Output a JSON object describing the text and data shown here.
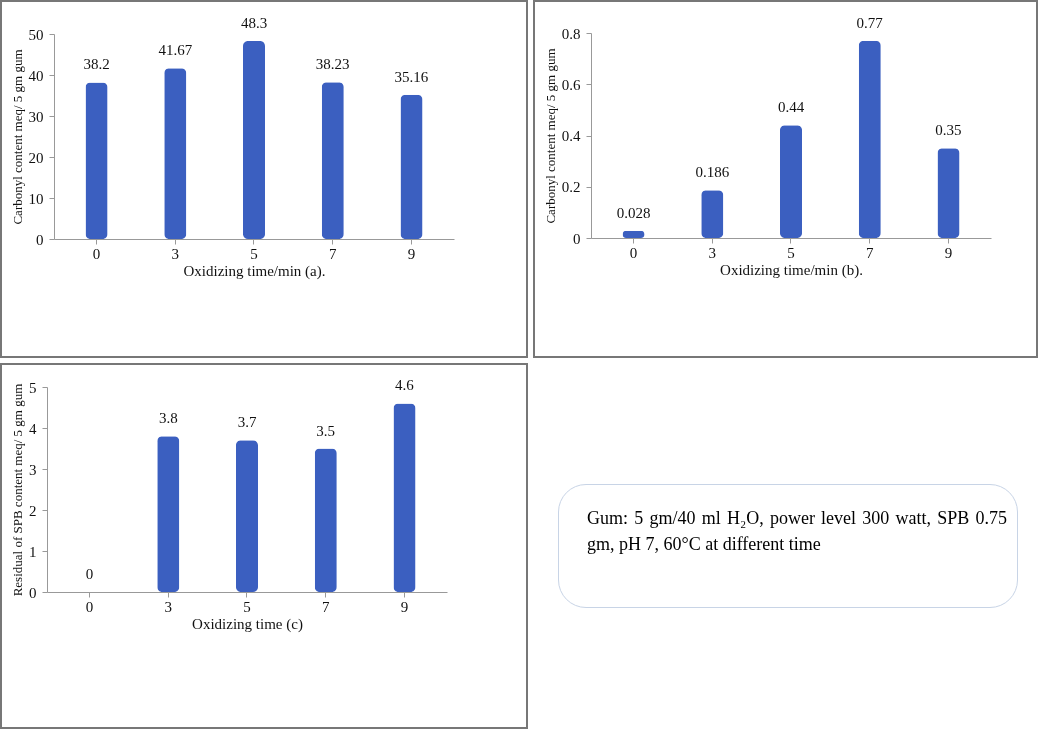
{
  "chart_data": [
    {
      "type": "bar",
      "xlabel": "Oxidizing time/min (a).",
      "ylabel": "Carbonyl content meq/ 5 gm gum",
      "categories": [
        "0",
        "3",
        "5",
        "7",
        "9"
      ],
      "values": [
        38.2,
        41.67,
        48.3,
        38.23,
        35.16
      ],
      "color": "#3b5fc0",
      "ylim": [
        0,
        50
      ],
      "yticks": [
        0,
        10,
        20,
        30,
        40,
        50
      ],
      "data_labels": true
    },
    {
      "type": "bar",
      "xlabel": "Oxidizing time/min (b).",
      "ylabel": "Carbonyl content meq/ 5 gm gum",
      "categories": [
        "0",
        "3",
        "5",
        "7",
        "9"
      ],
      "values": [
        0.028,
        0.186,
        0.44,
        0.77,
        0.35
      ],
      "color": "#3b5fc0",
      "ylim": [
        0,
        0.8
      ],
      "yticks": [
        0,
        0.2,
        0.4,
        0.6,
        0.8
      ],
      "data_labels": true
    },
    {
      "type": "bar",
      "xlabel": "Oxidizing time (c)",
      "ylabel": "Residual of SPB content meq/ 5 gm gum",
      "categories": [
        "0",
        "3",
        "5",
        "7",
        "9"
      ],
      "values": [
        0,
        3.8,
        3.7,
        3.5,
        4.6
      ],
      "color": "#3b5fc0",
      "ylim": [
        0,
        5
      ],
      "yticks": [
        0,
        1,
        2,
        3,
        4,
        5
      ],
      "data_labels": true
    },
    {
      "type": "other",
      "annotations": [
        "Gum: 5 gm/40 ml H₂O, power level 300 watt, SPB 0.75 gm, pH 7, 60°C at different time"
      ]
    }
  ]
}
